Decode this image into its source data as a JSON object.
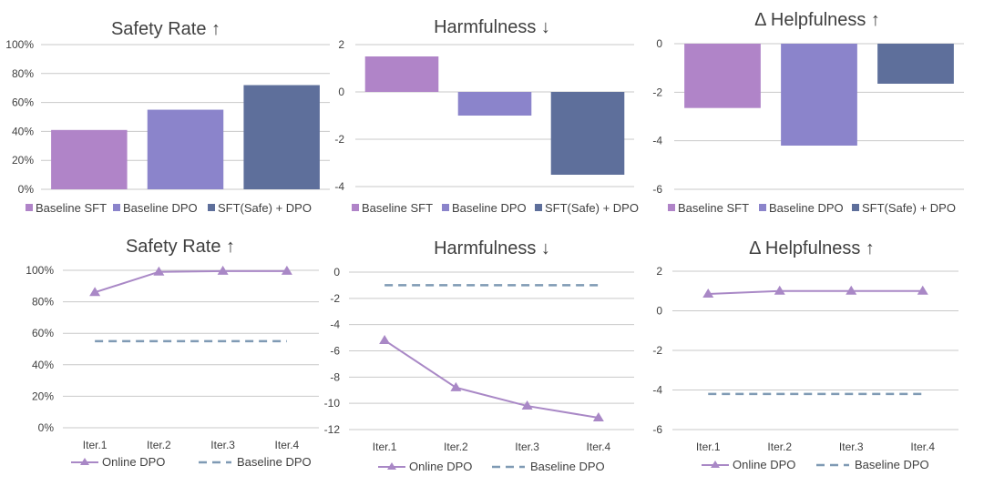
{
  "colors": {
    "baseline_sft": "#b084c8",
    "baseline_dpo": "#8b84cb",
    "sft_safe_dpo": "#5e6f9b",
    "online_dpo": "#a988c6",
    "baseline_dpo_line": "#7f9ab4",
    "grid": "#c9c9c9",
    "text": "#404040"
  },
  "chart_data": [
    {
      "id": "bar-safety",
      "type": "bar",
      "title": "Safety Rate ↑",
      "categories": [
        "Baseline SFT",
        "Baseline DPO",
        "SFT(Safe) + DPO"
      ],
      "values": [
        0.41,
        0.55,
        0.72
      ],
      "ylim": [
        0,
        1
      ],
      "yticks": [
        0,
        0.2,
        0.4,
        0.6,
        0.8,
        1.0
      ],
      "ytick_labels": [
        "0%",
        "20%",
        "40%",
        "60%",
        "80%",
        "100%"
      ],
      "grid": true,
      "legend": "bottom"
    },
    {
      "id": "bar-harm",
      "type": "bar",
      "title": "Harmfulness ↓",
      "categories": [
        "Baseline SFT",
        "Baseline DPO",
        "SFT(Safe) + DPO"
      ],
      "values": [
        1.5,
        -1.0,
        -3.5
      ],
      "ylim": [
        -4,
        2
      ],
      "yticks": [
        -4,
        -2,
        0,
        2
      ],
      "ytick_labels": [
        "-4",
        "-2",
        "0",
        "2"
      ],
      "grid": true,
      "legend": "bottom"
    },
    {
      "id": "bar-help",
      "type": "bar",
      "title": "Δ Helpfulness ↑",
      "categories": [
        "Baseline SFT",
        "Baseline DPO",
        "SFT(Safe) + DPO"
      ],
      "values": [
        -2.65,
        -4.2,
        -1.65
      ],
      "ylim": [
        -6,
        0
      ],
      "yticks": [
        -6,
        -4,
        -2,
        0
      ],
      "ytick_labels": [
        "-6",
        "-4",
        "-2",
        "0"
      ],
      "grid": true,
      "legend": "bottom"
    },
    {
      "id": "line-safety",
      "type": "line",
      "title": "Safety Rate ↑",
      "categories": [
        "Iter.1",
        "Iter.2",
        "Iter.3",
        "Iter.4"
      ],
      "series": [
        {
          "name": "Online DPO",
          "values": [
            0.86,
            0.99,
            0.995,
            0.995
          ],
          "style": "solid-triangle"
        },
        {
          "name": "Baseline DPO",
          "values": [
            0.55,
            0.55,
            0.55,
            0.55
          ],
          "style": "dashed"
        }
      ],
      "ylim": [
        0,
        1
      ],
      "yticks": [
        0,
        0.2,
        0.4,
        0.6,
        0.8,
        1.0
      ],
      "ytick_labels": [
        "0%",
        "20%",
        "40%",
        "60%",
        "80%",
        "100%"
      ],
      "grid": true,
      "legend": "bottom"
    },
    {
      "id": "line-harm",
      "type": "line",
      "title": "Harmfulness ↓",
      "categories": [
        "Iter.1",
        "Iter.2",
        "Iter.3",
        "Iter.4"
      ],
      "series": [
        {
          "name": "Online DPO",
          "values": [
            -5.2,
            -8.8,
            -10.2,
            -11.1
          ],
          "style": "solid-triangle"
        },
        {
          "name": "Baseline DPO",
          "values": [
            -1.0,
            -1.0,
            -1.0,
            -1.0
          ],
          "style": "dashed"
        }
      ],
      "ylim": [
        -12,
        0
      ],
      "yticks": [
        -12,
        -10,
        -8,
        -6,
        -4,
        -2,
        0
      ],
      "ytick_labels": [
        "-12",
        "-10",
        "-8",
        "-6",
        "-4",
        "-2",
        "0"
      ],
      "grid": true,
      "legend": "bottom"
    },
    {
      "id": "line-help",
      "type": "line",
      "title": "Δ Helpfulness ↑",
      "categories": [
        "Iter.1",
        "Iter.2",
        "Iter.3",
        "Iter.4"
      ],
      "series": [
        {
          "name": "Online DPO",
          "values": [
            0.85,
            1.0,
            1.0,
            1.0
          ],
          "style": "solid-triangle"
        },
        {
          "name": "Baseline DPO",
          "values": [
            -4.2,
            -4.2,
            -4.2,
            -4.2
          ],
          "style": "dashed"
        }
      ],
      "ylim": [
        -6,
        2
      ],
      "yticks": [
        -6,
        -4,
        -2,
        0,
        2
      ],
      "ytick_labels": [
        "-6",
        "-4",
        "-2",
        "0",
        "2"
      ],
      "grid": true,
      "legend": "bottom"
    }
  ]
}
